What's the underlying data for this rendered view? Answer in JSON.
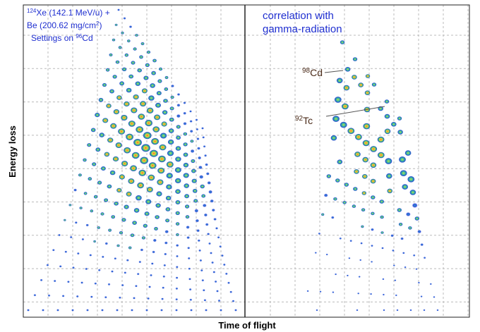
{
  "left_panel": {
    "lines": [
      [
        "124",
        "Xe (142.1 MeV/u) +"
      ],
      [
        "Be (200.62 mg/cm",
        "2",
        ")"
      ],
      [
        "Settings on ",
        "96",
        "Cd"
      ]
    ]
  },
  "right_panel": {
    "lines": [
      "correlation with",
      "gamma-radiation"
    ],
    "labels": [
      [
        "98",
        "Cd"
      ],
      [
        "92",
        "Tc"
      ]
    ]
  },
  "axes": {
    "y_label": "Energy loss",
    "x_label": "Time of flight"
  }
}
